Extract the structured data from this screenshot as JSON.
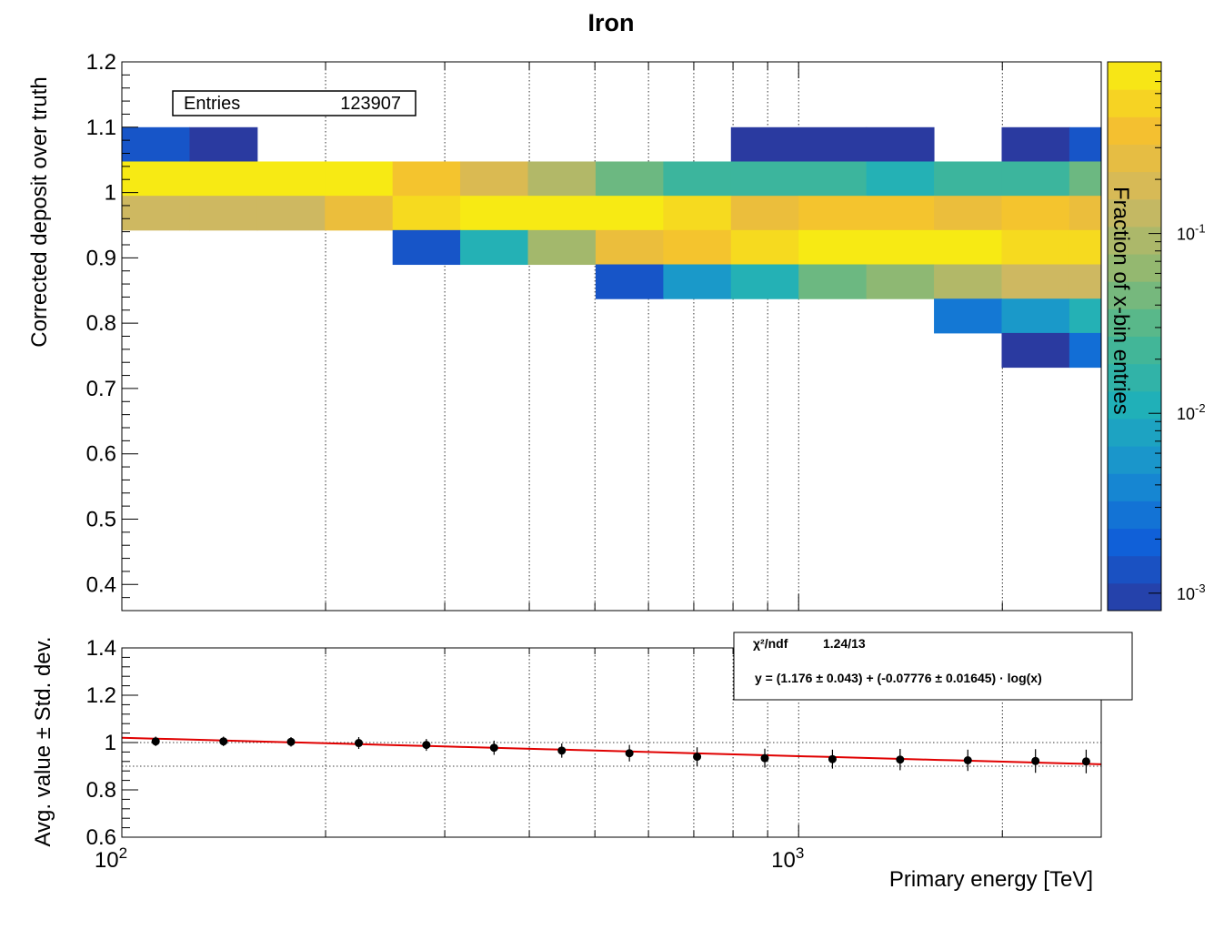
{
  "chart_data": [
    {
      "type": "heatmap",
      "title": "Iron",
      "xlabel": "",
      "ylabel": "Corrected deposit over truth",
      "xscale": "log",
      "xlim": [
        100,
        2800
      ],
      "ylim": [
        0.36,
        1.2
      ],
      "yticks": [
        "0.4",
        "0.5",
        "0.6",
        "0.7",
        "0.8",
        "0.9",
        "1",
        "1.1",
        "1.2"
      ],
      "x_edges": [
        100,
        125.9,
        158.5,
        199.5,
        251.2,
        316.2,
        398.1,
        501.2,
        631.0,
        794.3,
        1000,
        1258.9,
        1584.9,
        1995.3,
        2511.9,
        2800
      ],
      "y_edges": [
        0.7325,
        0.785,
        0.8375,
        0.89,
        0.9425,
        0.995,
        1.0475,
        1.1
      ],
      "cells_note": "rows listed from top (y bin 1.0475-1.1) to bottom (0.7325-0.785); values = fraction of x-bin entries, null = empty",
      "cells": [
        [
          0.0015,
          0.0008,
          null,
          null,
          null,
          null,
          null,
          null,
          null,
          0.0008,
          0.0008,
          0.0008,
          null,
          0.0008,
          0.0015
        ],
        [
          0.8,
          0.8,
          0.8,
          0.8,
          0.4,
          0.2,
          0.1,
          0.04,
          0.02,
          0.02,
          0.02,
          0.012,
          0.02,
          0.02,
          0.04
        ],
        [
          0.15,
          0.15,
          0.15,
          0.3,
          0.6,
          0.8,
          0.8,
          0.8,
          0.6,
          0.3,
          0.4,
          0.4,
          0.3,
          0.4,
          0.3
        ],
        [
          null,
          null,
          null,
          null,
          0.0015,
          0.012,
          0.08,
          0.3,
          0.4,
          0.6,
          0.8,
          0.8,
          0.8,
          0.6,
          0.6
        ],
        [
          null,
          null,
          null,
          null,
          null,
          null,
          null,
          0.0015,
          0.006,
          0.012,
          0.04,
          0.06,
          0.1,
          0.15,
          0.15
        ],
        [
          null,
          null,
          null,
          null,
          null,
          null,
          null,
          null,
          null,
          null,
          null,
          null,
          0.003,
          0.006,
          0.012
        ],
        [
          null,
          null,
          null,
          null,
          null,
          null,
          null,
          null,
          null,
          null,
          null,
          null,
          null,
          0.0008,
          0.0025
        ]
      ],
      "colorbar": {
        "label": "Fraction of x-bin entries",
        "scale": "log",
        "range": [
          0.0008,
          0.9
        ],
        "ticks": [
          "10^{-3}",
          "10^{-2}",
          "10^{-1}"
        ],
        "colors": [
          "#2a3aa0",
          "#1060d8",
          "#1890d0",
          "#20b0b8",
          "#4ab890",
          "#94b870",
          "#d0b860",
          "#f4c030",
          "#f8f010"
        ]
      },
      "stats": {
        "label": "Entries",
        "value": "123907"
      },
      "grid": true
    },
    {
      "type": "scatter",
      "xlabel": "Primary energy [TeV]",
      "ylabel": "Avg. value ± Std. dev.",
      "xscale": "log",
      "xlim": [
        100,
        2800
      ],
      "ylim": [
        0.6,
        1.4
      ],
      "yticks": [
        "0.6",
        "0.8",
        "1",
        "1.2",
        "1.4"
      ],
      "xticks": [
        {
          "base": "10",
          "exp": "2",
          "value": 100
        },
        {
          "base": "10",
          "exp": "3",
          "value": 1000
        }
      ],
      "points": [
        {
          "x": 112.2,
          "y": 1.005,
          "err": 0.02
        },
        {
          "x": 141.3,
          "y": 1.005,
          "err": 0.02
        },
        {
          "x": 177.8,
          "y": 1.003,
          "err": 0.02
        },
        {
          "x": 223.9,
          "y": 0.998,
          "err": 0.025
        },
        {
          "x": 281.8,
          "y": 0.99,
          "err": 0.025
        },
        {
          "x": 354.8,
          "y": 0.978,
          "err": 0.03
        },
        {
          "x": 446.7,
          "y": 0.966,
          "err": 0.03
        },
        {
          "x": 562.3,
          "y": 0.955,
          "err": 0.035
        },
        {
          "x": 707.9,
          "y": 0.94,
          "err": 0.04
        },
        {
          "x": 891.3,
          "y": 0.934,
          "err": 0.04
        },
        {
          "x": 1122.0,
          "y": 0.93,
          "err": 0.04
        },
        {
          "x": 1412.5,
          "y": 0.928,
          "err": 0.045
        },
        {
          "x": 1778.3,
          "y": 0.925,
          "err": 0.045
        },
        {
          "x": 2238.7,
          "y": 0.922,
          "err": 0.05
        },
        {
          "x": 2660.0,
          "y": 0.92,
          "err": 0.05
        }
      ],
      "fit": {
        "a": 1.176,
        "b": -0.07776,
        "color": "#e00000"
      },
      "reference_lines": [
        1.0,
        0.9
      ],
      "stats_box": {
        "chi2_label": "χ²/ndf",
        "chi2_value": "1.24/13",
        "formula": "y = (1.176 ± 0.043) + (-0.07776 ± 0.01645) · log(x)"
      },
      "grid": true
    }
  ]
}
